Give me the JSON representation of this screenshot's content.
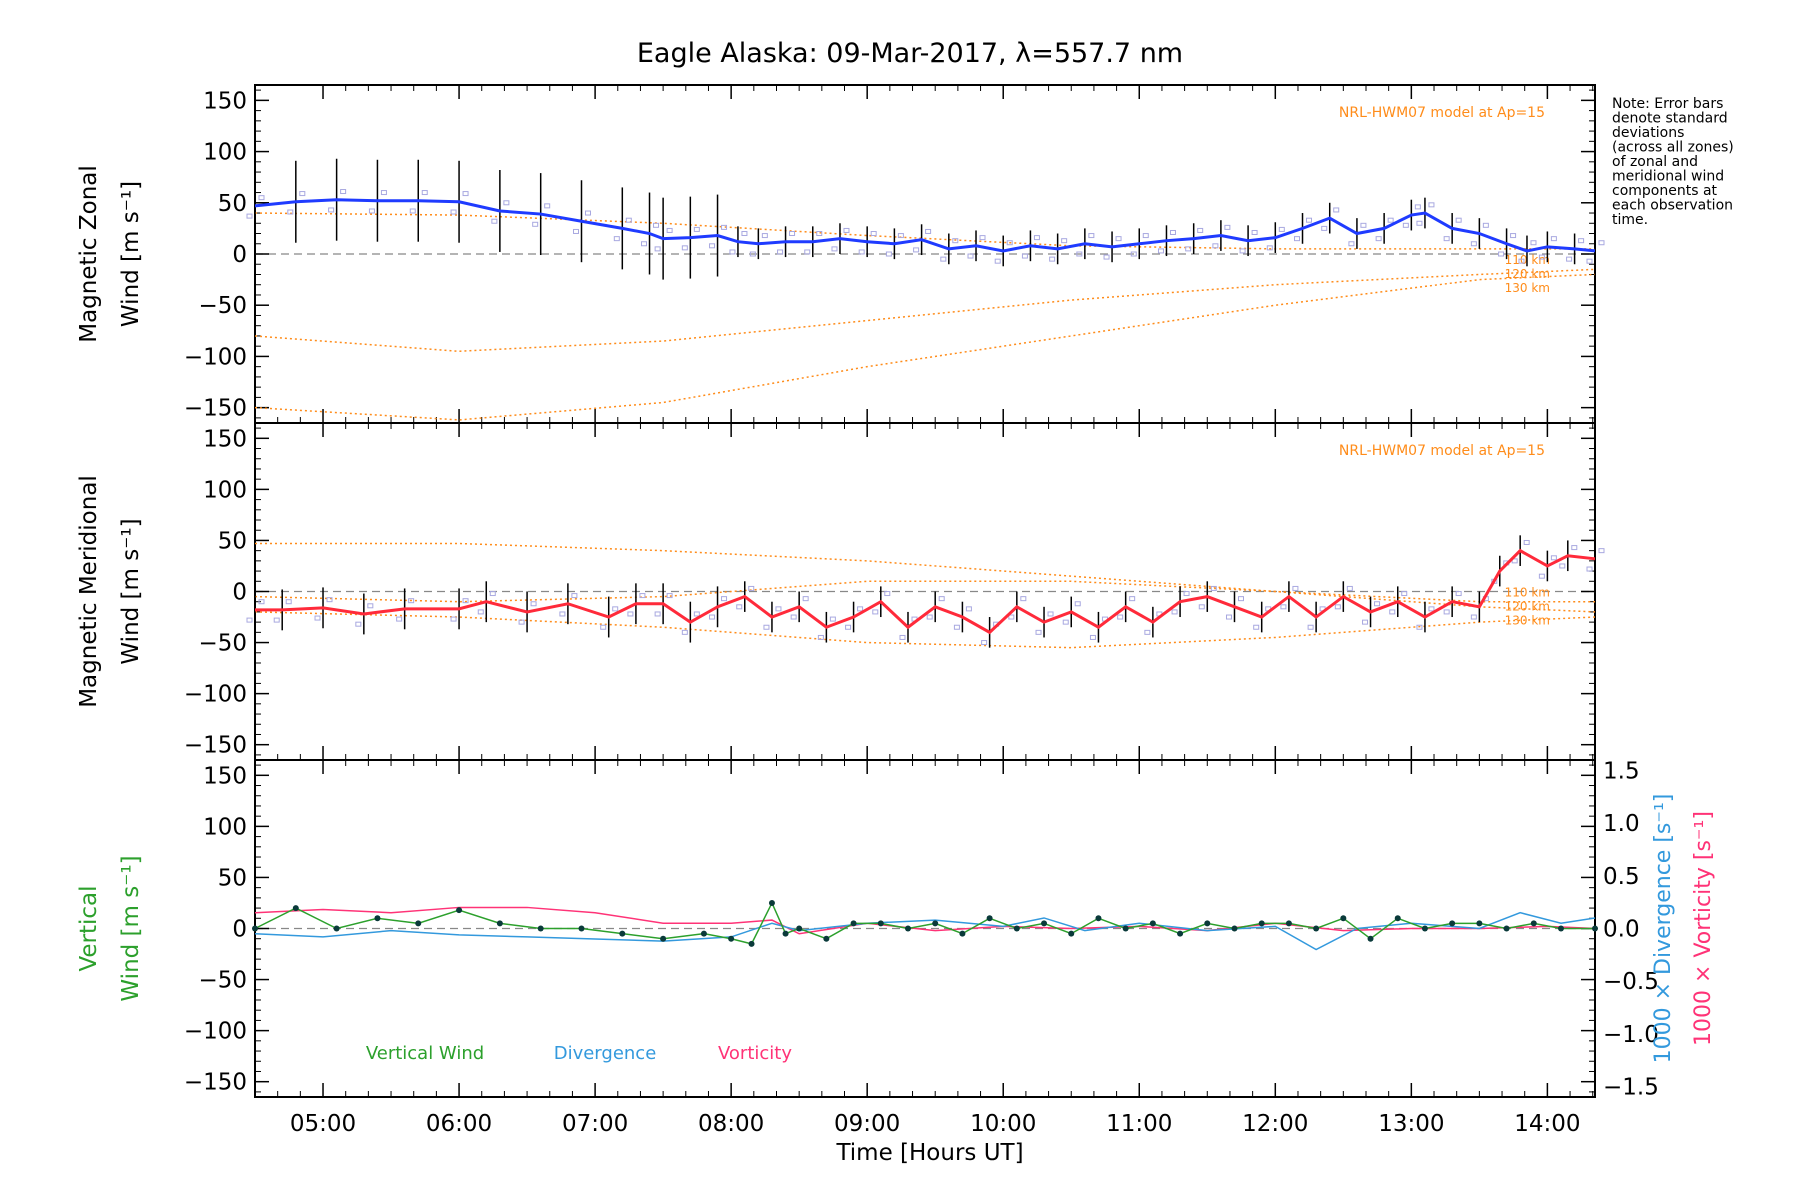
{
  "title": "Eagle Alaska: 09-Mar-2017, λ=557.7 nm",
  "note_lines": [
    "Note: Error bars",
    "denote standard",
    "deviations",
    "(across all zones)",
    "of zonal and",
    "meridional wind",
    "components at",
    "each observation",
    "time."
  ],
  "model_label": "NRL-HWM07 model at Ap=15",
  "altitude_labels": [
    "110 km",
    "120 km",
    "130 km"
  ],
  "xlabel": "Time [Hours UT]",
  "chart_data": [
    {
      "type": "line",
      "panel": "zonal",
      "ylabel_lines": [
        "Magnetic Zonal",
        "Wind [m s⁻¹]"
      ],
      "ylim": [
        -165,
        165
      ],
      "yticks": [
        150,
        100,
        50,
        0,
        -50,
        -100,
        -150
      ],
      "xlim": [
        4.5,
        14.35
      ],
      "xticks": [
        "05:00",
        "06:00",
        "07:00",
        "08:00",
        "09:00",
        "10:00",
        "11:00",
        "12:00",
        "13:00",
        "14:00"
      ],
      "zero_line": "dashed",
      "colors": {
        "mean": "#1f3bff",
        "model": "#ff8c1a",
        "scatter": "#a8a8e0",
        "errorbar": "#000000"
      },
      "series": [
        {
          "x": [
            4.5,
            4.8,
            5.1,
            5.4,
            5.7,
            6.0,
            6.3,
            6.6,
            6.9,
            7.2,
            7.4,
            7.5,
            7.7,
            7.9,
            8.05,
            8.2,
            8.4,
            8.6,
            8.8,
            9.0,
            9.2,
            9.4,
            9.6,
            9.8,
            10.0,
            10.2,
            10.4,
            10.6,
            10.8,
            11.0,
            11.2,
            11.4,
            11.6,
            11.8,
            12.0,
            12.2,
            12.4,
            12.6,
            12.8,
            13.0,
            13.1,
            13.3,
            13.5,
            13.7,
            13.85,
            14.0,
            14.2,
            14.35
          ],
          "values": [
            47,
            51,
            53,
            52,
            52,
            51,
            42,
            39,
            32,
            25,
            20,
            15,
            16,
            18,
            12,
            10,
            12,
            12,
            15,
            12,
            10,
            14,
            5,
            8,
            3,
            8,
            5,
            10,
            7,
            10,
            13,
            15,
            18,
            13,
            16,
            25,
            35,
            20,
            25,
            38,
            40,
            25,
            20,
            10,
            3,
            7,
            5,
            3
          ]
        },
        {
          "x": [
            4.5,
            6.0,
            7.5,
            9.0,
            10.5,
            12.0,
            13.5,
            14.35
          ],
          "values": [
            40,
            38,
            30,
            18,
            8,
            5,
            5,
            5
          ]
        },
        {
          "x": [
            4.5,
            6.0,
            7.5,
            9.0,
            10.5,
            12.0,
            13.5,
            14.35
          ],
          "values": [
            -80,
            -95,
            -85,
            -65,
            -45,
            -30,
            -20,
            -15
          ]
        },
        {
          "x": [
            4.5,
            6.0,
            7.5,
            9.0,
            10.5,
            12.0,
            13.5,
            14.35
          ],
          "values": [
            -150,
            -162,
            -145,
            -110,
            -80,
            -50,
            -25,
            -20
          ]
        }
      ]
    },
    {
      "type": "line",
      "panel": "meridional",
      "ylabel_lines": [
        "Magnetic Meridional",
        "Wind [m s⁻¹]"
      ],
      "ylim": [
        -165,
        165
      ],
      "yticks": [
        150,
        100,
        50,
        0,
        -50,
        -100,
        -150
      ],
      "xlim": [
        4.5,
        14.35
      ],
      "zero_line": "dashed",
      "colors": {
        "mean": "#ff2a3a",
        "model": "#ff8c1a",
        "scatter": "#a8a8e0",
        "errorbar": "#000000"
      },
      "series": [
        {
          "x": [
            4.5,
            4.7,
            5.0,
            5.3,
            5.6,
            6.0,
            6.2,
            6.5,
            6.8,
            7.1,
            7.3,
            7.5,
            7.7,
            7.9,
            8.1,
            8.3,
            8.5,
            8.7,
            8.9,
            9.1,
            9.3,
            9.5,
            9.7,
            9.9,
            10.1,
            10.3,
            10.5,
            10.7,
            10.9,
            11.1,
            11.3,
            11.5,
            11.7,
            11.9,
            12.1,
            12.3,
            12.5,
            12.7,
            12.9,
            13.1,
            13.3,
            13.5,
            13.65,
            13.8,
            14.0,
            14.15,
            14.35
          ],
          "values": [
            -18,
            -18,
            -16,
            -22,
            -17,
            -17,
            -10,
            -20,
            -12,
            -25,
            -12,
            -12,
            -30,
            -15,
            -5,
            -25,
            -15,
            -35,
            -25,
            -10,
            -35,
            -15,
            -25,
            -40,
            -15,
            -30,
            -20,
            -35,
            -15,
            -30,
            -10,
            -5,
            -15,
            -25,
            -5,
            -25,
            -5,
            -20,
            -10,
            -25,
            -10,
            -15,
            20,
            40,
            25,
            35,
            32
          ]
        },
        {
          "x": [
            4.5,
            6.0,
            7.5,
            9.0,
            10.5,
            12.0,
            13.5,
            14.35
          ],
          "values": [
            47,
            47,
            40,
            30,
            15,
            0,
            -10,
            -10
          ]
        },
        {
          "x": [
            4.5,
            6.0,
            7.5,
            9.0,
            10.5,
            12.0,
            13.5,
            14.35
          ],
          "values": [
            -5,
            -10,
            -5,
            10,
            10,
            0,
            -15,
            -20
          ]
        },
        {
          "x": [
            4.5,
            6.0,
            7.5,
            9.0,
            10.5,
            12.0,
            13.5,
            14.35
          ],
          "values": [
            -20,
            -25,
            -35,
            -50,
            -55,
            -45,
            -30,
            -25
          ]
        }
      ]
    },
    {
      "type": "line",
      "panel": "vertical",
      "ylabel_lines": [
        "Vertical",
        "Wind [m s⁻¹]"
      ],
      "right_axis_label_1": "1000 × Divergence [s⁻¹]",
      "right_axis_label_2": "1000 × Vorticity [s⁻¹]",
      "ylim": [
        -165,
        165
      ],
      "yticks": [
        150,
        100,
        50,
        0,
        -50,
        -100,
        -150
      ],
      "y2lim": [
        -1.6,
        1.6
      ],
      "y2ticks": [
        "1.5",
        "1.0",
        "0.5",
        "0.0",
        "−0.5",
        "−1.0",
        "−1.5"
      ],
      "xlim": [
        4.5,
        14.35
      ],
      "zero_line": "dashed",
      "legend": [
        {
          "name": "Vertical Wind",
          "color": "#2ca02c"
        },
        {
          "name": "Divergence",
          "color": "#3399dd"
        },
        {
          "name": "Vorticity",
          "color": "#ff3377"
        }
      ],
      "series": [
        {
          "name": "Vertical Wind",
          "x": [
            4.5,
            4.8,
            5.1,
            5.4,
            5.7,
            6.0,
            6.3,
            6.6,
            6.9,
            7.2,
            7.5,
            7.8,
            8.0,
            8.15,
            8.3,
            8.4,
            8.5,
            8.7,
            8.9,
            9.1,
            9.3,
            9.5,
            9.7,
            9.9,
            10.1,
            10.3,
            10.5,
            10.7,
            10.9,
            11.1,
            11.3,
            11.5,
            11.7,
            11.9,
            12.1,
            12.3,
            12.5,
            12.7,
            12.9,
            13.1,
            13.3,
            13.5,
            13.7,
            13.9,
            14.1,
            14.35
          ],
          "values": [
            0,
            20,
            0,
            10,
            5,
            18,
            5,
            0,
            0,
            -5,
            -10,
            -5,
            -10,
            -15,
            25,
            -5,
            0,
            -10,
            5,
            5,
            0,
            5,
            -5,
            10,
            0,
            5,
            -5,
            10,
            0,
            5,
            -5,
            5,
            0,
            5,
            5,
            0,
            10,
            -10,
            10,
            0,
            5,
            5,
            0,
            5,
            0,
            0
          ]
        },
        {
          "name": "Divergence",
          "x": [
            4.5,
            5.0,
            5.5,
            6.0,
            6.5,
            7.0,
            7.5,
            8.0,
            8.3,
            8.5,
            9.0,
            9.5,
            10.0,
            10.3,
            10.6,
            11.0,
            11.5,
            12.0,
            12.3,
            12.6,
            13.0,
            13.5,
            13.8,
            14.1,
            14.35
          ],
          "values": [
            -0.05,
            -0.08,
            -0.02,
            -0.06,
            -0.08,
            -0.1,
            -0.12,
            -0.08,
            0.05,
            -0.02,
            0.05,
            0.08,
            0.02,
            0.1,
            -0.02,
            0.05,
            -0.02,
            0.02,
            -0.2,
            0.0,
            0.05,
            0.0,
            0.15,
            0.05,
            0.1
          ]
        },
        {
          "name": "Vorticity",
          "x": [
            4.5,
            5.0,
            5.5,
            6.0,
            6.5,
            7.0,
            7.5,
            8.0,
            8.3,
            8.5,
            9.0,
            9.5,
            10.0,
            10.5,
            11.0,
            11.5,
            12.0,
            12.5,
            13.0,
            13.5,
            14.0,
            14.35
          ],
          "values": [
            0.15,
            0.18,
            0.15,
            0.2,
            0.2,
            0.15,
            0.05,
            0.05,
            0.08,
            -0.05,
            0.05,
            -0.02,
            0.02,
            0.0,
            0.02,
            -0.02,
            0.05,
            -0.02,
            0.0,
            0.0,
            0.02,
            0.0
          ]
        }
      ]
    }
  ]
}
